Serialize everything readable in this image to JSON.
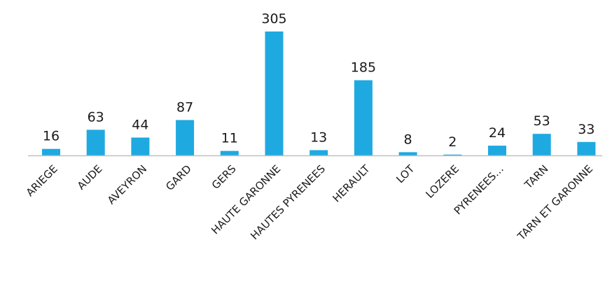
{
  "chart_data": {
    "type": "bar",
    "categories": [
      "ARIEGE",
      "AUDE",
      "AVEYRON",
      "GARD",
      "GERS",
      "HAUTE GARONNE",
      "HAUTES PYRENEES",
      "HERAULT",
      "LOT",
      "LOZERE",
      "PYRENEES…",
      "TARN",
      "TARN ET GARONNE"
    ],
    "values": [
      16,
      63,
      44,
      87,
      11,
      305,
      13,
      185,
      8,
      2,
      24,
      53,
      33
    ],
    "title": "",
    "xlabel": "",
    "ylabel": "",
    "ylim": [
      0,
      305
    ],
    "grid": false,
    "legend": "none",
    "data_labels": true,
    "colors": {
      "bar": "#1FA9E1",
      "axis": "#bfbfbf",
      "text": "#1a1a1a"
    }
  }
}
